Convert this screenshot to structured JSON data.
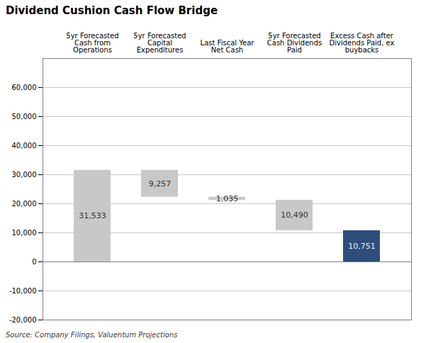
{
  "chart_data": {
    "type": "waterfall",
    "title": "Dividend Cushion Cash Flow Bridge",
    "annotations": [
      "Source: Company Filings, Valuentum Projections"
    ],
    "categories": [
      "5yr Forecasted\nCash from\nOperations",
      "5yr Forecasted\nCapital\nExpenditures",
      "Last Fiscal Year\nNet Cash",
      "5yr Forecasted\nCash Dividends\nPaid",
      "Excess Cash after\nDividends Paid, ex\nbuybacks"
    ],
    "values": [
      31533,
      9257,
      1035,
      10490,
      10751
    ],
    "bottoms": [
      0,
      22276,
      21241,
      10751,
      0
    ],
    "value_labels": [
      "31,533",
      "9,257",
      "1,035",
      "10,490",
      "10,751"
    ],
    "data_labels": true,
    "colors": [
      "#c8c8c8",
      "#c8c8c8",
      "#c8c8c8",
      "#c8c8c8",
      "#2e4d7b"
    ],
    "ylim": [
      -20000,
      70000
    ],
    "yticks": [
      {
        "value": -20000,
        "label": "-20,000"
      },
      {
        "value": -10000,
        "label": "-10,000"
      },
      0,
      {
        "value": 10000,
        "label": "10,000"
      },
      {
        "value": 20000,
        "label": "20,000"
      },
      {
        "value": 30000,
        "label": "30,000"
      },
      {
        "value": 40000,
        "label": "40,000"
      },
      {
        "value": 50000,
        "label": "50,000"
      },
      {
        "value": 60000,
        "label": "60,000"
      }
    ],
    "grid": true
  }
}
